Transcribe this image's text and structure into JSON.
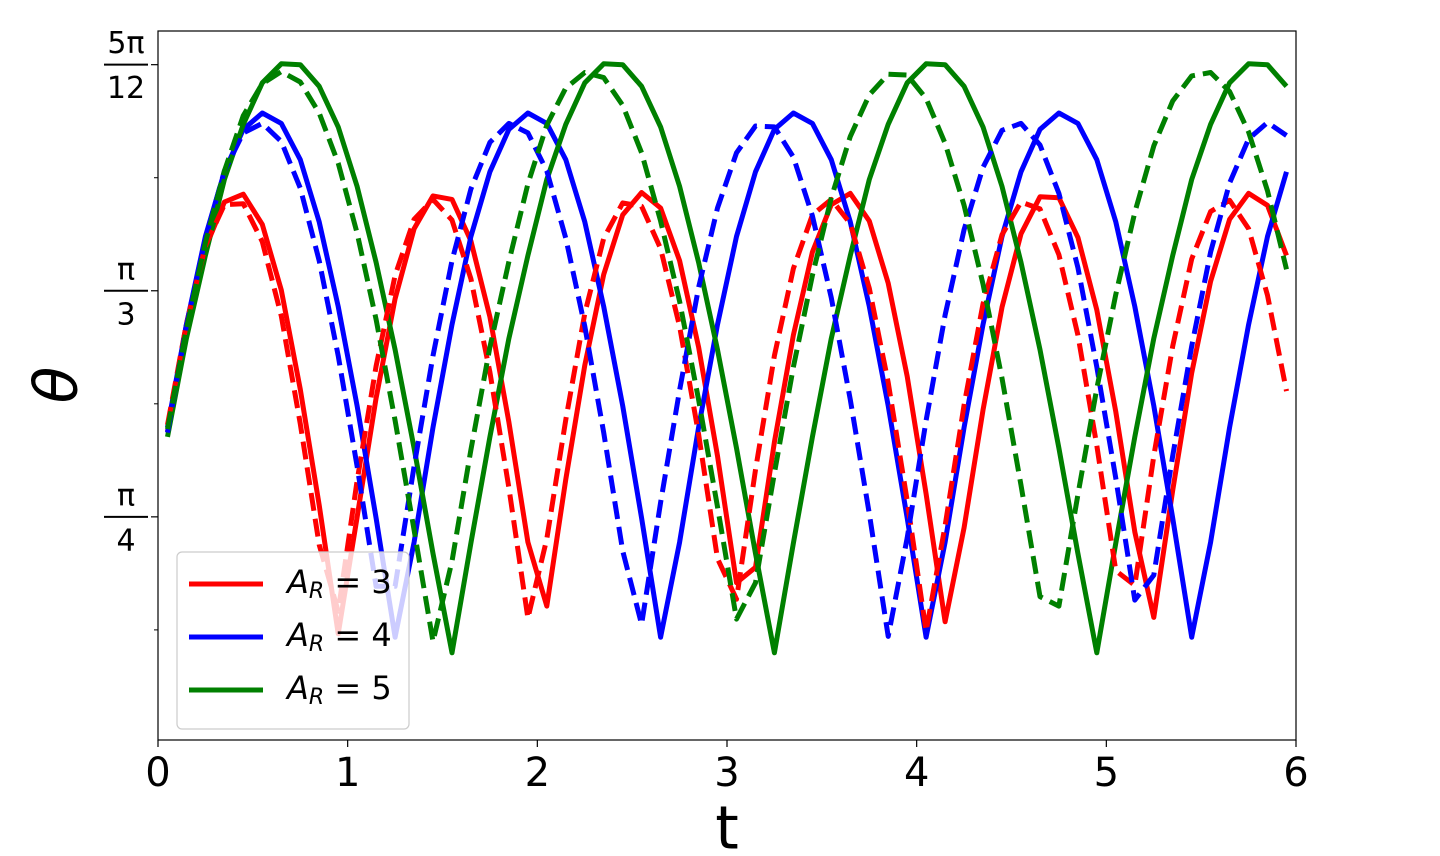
{
  "chart_data": {
    "type": "line",
    "x_label": "t",
    "y_label": "θ",
    "xlim": [
      0,
      6
    ],
    "xticks": [
      0,
      1,
      2,
      3,
      4,
      5,
      6
    ],
    "ylim": [
      0.527,
      1.348
    ],
    "yticks": [
      {
        "value": 0.7854,
        "label": {
          "numerator": "π",
          "denominator": "4"
        }
      },
      {
        "value": 1.0472,
        "label": {
          "numerator": "π",
          "denominator": "3"
        }
      },
      {
        "value": 1.309,
        "label": {
          "numerator": "5π",
          "denominator": "12"
        }
      }
    ],
    "yminorticks": [
      0.6545,
      0.9163,
      1.1781
    ],
    "legend": "lower left",
    "x": [
      0.05,
      0.15,
      0.25,
      0.35,
      0.45,
      0.55,
      0.65,
      0.75,
      0.85,
      0.95,
      1.05,
      1.15,
      1.25,
      1.35,
      1.45,
      1.55,
      1.65,
      1.75,
      1.85,
      1.95,
      2.05,
      2.15,
      2.25,
      2.35,
      2.45,
      2.55,
      2.65,
      2.75,
      2.85,
      2.95,
      3.05,
      3.15,
      3.25,
      3.35,
      3.45,
      3.55,
      3.65,
      3.75,
      3.85,
      3.95,
      4.05,
      4.15,
      4.25,
      4.35,
      4.45,
      4.55,
      4.65,
      4.75,
      4.85,
      4.95,
      5.05,
      5.15,
      5.25,
      5.35,
      5.45,
      5.55,
      5.65,
      5.75,
      5.85,
      5.95
    ],
    "series": [
      {
        "name": "A_R = 3",
        "color": "#ff0000",
        "values": [
          0.884,
          1.008,
          1.097,
          1.15,
          1.159,
          1.124,
          1.048,
          0.933,
          0.799,
          0.65,
          0.785,
          0.923,
          1.038,
          1.119,
          1.157,
          1.153,
          1.105,
          1.017,
          0.895,
          0.756,
          0.682,
          0.829,
          0.961,
          1.066,
          1.135,
          1.161,
          1.143,
          1.082,
          0.982,
          0.856,
          0.709,
          0.727,
          0.872,
          0.996,
          1.092,
          1.147,
          1.16,
          1.128,
          1.056,
          0.948,
          0.812,
          0.664,
          0.773,
          0.909,
          1.028,
          1.113,
          1.156,
          1.155,
          1.109,
          1.025,
          0.907,
          0.768,
          0.669,
          0.816,
          0.952,
          1.058,
          1.13,
          1.16,
          1.146,
          1.088
        ]
      },
      {
        "name": "A_R = 4",
        "color": "#0000ff",
        "values": [
          0.889,
          1.008,
          1.11,
          1.185,
          1.234,
          1.253,
          1.241,
          1.199,
          1.127,
          1.029,
          0.914,
          0.784,
          0.646,
          0.756,
          0.889,
          1.008,
          1.11,
          1.185,
          1.234,
          1.253,
          1.241,
          1.199,
          1.127,
          1.029,
          0.914,
          0.784,
          0.646,
          0.756,
          0.889,
          1.008,
          1.11,
          1.185,
          1.234,
          1.253,
          1.241,
          1.199,
          1.127,
          1.029,
          0.914,
          0.784,
          0.646,
          0.756,
          0.889,
          1.008,
          1.11,
          1.185,
          1.234,
          1.253,
          1.241,
          1.199,
          1.127,
          1.029,
          0.914,
          0.784,
          0.646,
          0.756,
          0.889,
          1.008,
          1.11,
          1.185
        ]
      },
      {
        "name": "A_R = 5",
        "color": "#008000",
        "values": [
          0.878,
          0.992,
          1.088,
          1.176,
          1.24,
          1.288,
          1.31,
          1.309,
          1.284,
          1.237,
          1.168,
          1.08,
          0.979,
          0.865,
          0.743,
          0.628,
          0.755,
          0.878,
          0.992,
          1.088,
          1.176,
          1.24,
          1.288,
          1.31,
          1.309,
          1.284,
          1.237,
          1.168,
          1.08,
          0.979,
          0.865,
          0.743,
          0.628,
          0.755,
          0.878,
          0.992,
          1.088,
          1.176,
          1.24,
          1.288,
          1.31,
          1.309,
          1.284,
          1.237,
          1.168,
          1.08,
          0.979,
          0.865,
          0.743,
          0.628,
          0.755,
          0.878,
          0.992,
          1.088,
          1.176,
          1.24,
          1.288,
          1.31,
          1.309,
          1.284
        ]
      },
      {
        "color": "#ff0000",
        "dash": true,
        "values": [
          0.892,
          1.009,
          1.099,
          1.147,
          1.148,
          1.104,
          1.018,
          0.893,
          0.753,
          0.676,
          0.827,
          0.96,
          1.065,
          1.13,
          1.153,
          1.129,
          1.061,
          0.953,
          0.819,
          0.668,
          0.76,
          0.898,
          1.021,
          1.108,
          1.149,
          1.145,
          1.096,
          1.006,
          0.881,
          0.737,
          0.69,
          0.84,
          0.972,
          1.073,
          1.135,
          1.153,
          1.125,
          1.05,
          0.941,
          0.804,
          0.653,
          0.775,
          0.915,
          1.032,
          1.112,
          1.15,
          1.142,
          1.089,
          0.996,
          0.868,
          0.723,
          0.706,
          0.856,
          0.983,
          1.084,
          1.139,
          1.152,
          1.119,
          1.042,
          0.931
        ]
      },
      {
        "color": "#0000ff",
        "dash": true,
        "values": [
          0.883,
          1.007,
          1.108,
          1.186,
          1.23,
          1.241,
          1.22,
          1.166,
          1.082,
          0.972,
          0.844,
          0.705,
          0.705,
          0.844,
          0.972,
          1.082,
          1.165,
          1.219,
          1.241,
          1.23,
          1.186,
          1.108,
          1.006,
          0.883,
          0.746,
          0.661,
          0.802,
          0.932,
          1.051,
          1.143,
          1.207,
          1.238,
          1.237,
          1.202,
          1.134,
          1.039,
          0.921,
          0.789,
          0.647,
          0.761,
          0.897,
          1.019,
          1.118,
          1.19,
          1.233,
          1.241,
          1.216,
          1.16,
          1.074,
          0.959,
          0.83,
          0.689,
          0.718,
          0.856,
          0.983,
          1.092,
          1.172,
          1.223,
          1.242,
          1.227
        ]
      },
      {
        "color": "#008000",
        "dash": true,
        "values": [
          0.887,
          1.003,
          1.103,
          1.186,
          1.25,
          1.287,
          1.301,
          1.289,
          1.253,
          1.195,
          1.114,
          1.014,
          0.897,
          0.77,
          0.641,
          0.734,
          0.863,
          0.982,
          1.081,
          1.171,
          1.239,
          1.282,
          1.3,
          1.294,
          1.262,
          1.207,
          1.128,
          1.035,
          0.921,
          0.797,
          0.667,
          0.709,
          0.836,
          0.959,
          1.065,
          1.155,
          1.226,
          1.274,
          1.298,
          1.297,
          1.27,
          1.218,
          1.146,
          1.055,
          0.946,
          0.822,
          0.693,
          0.682,
          0.811,
          0.934,
          1.043,
          1.138,
          1.215,
          1.267,
          1.296,
          1.3,
          1.278,
          1.231,
          1.163,
          1.072
        ]
      }
    ]
  }
}
